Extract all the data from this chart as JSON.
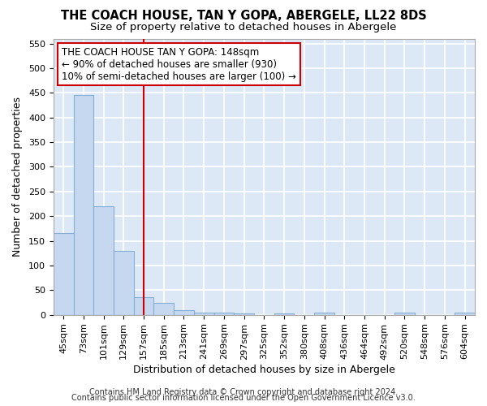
{
  "title1": "THE COACH HOUSE, TAN Y GOPA, ABERGELE, LL22 8DS",
  "title2": "Size of property relative to detached houses in Abergele",
  "xlabel": "Distribution of detached houses by size in Abergele",
  "ylabel": "Number of detached properties",
  "footer1": "Contains HM Land Registry data © Crown copyright and database right 2024.",
  "footer2": "Contains public sector information licensed under the Open Government Licence v3.0.",
  "categories": [
    "45sqm",
    "73sqm",
    "101sqm",
    "129sqm",
    "157sqm",
    "185sqm",
    "213sqm",
    "241sqm",
    "269sqm",
    "297sqm",
    "325sqm",
    "352sqm",
    "380sqm",
    "408sqm",
    "436sqm",
    "464sqm",
    "492sqm",
    "520sqm",
    "548sqm",
    "576sqm",
    "604sqm"
  ],
  "values": [
    165,
    445,
    220,
    130,
    35,
    25,
    10,
    5,
    4,
    2,
    0,
    3,
    0,
    4,
    0,
    0,
    0,
    4,
    0,
    0,
    4
  ],
  "bar_color": "#c5d8f0",
  "bar_edge_color": "#85aed4",
  "red_line_index": 4,
  "red_line_color": "#cc0000",
  "annotation_text": "THE COACH HOUSE TAN Y GOPA: 148sqm\n← 90% of detached houses are smaller (930)\n10% of semi-detached houses are larger (100) →",
  "annotation_box_color": "#ffffff",
  "annotation_border_color": "#cc0000",
  "ylim": [
    0,
    560
  ],
  "yticks": [
    0,
    50,
    100,
    150,
    200,
    250,
    300,
    350,
    400,
    450,
    500,
    550
  ],
  "background_color": "#dce8f5",
  "grid_color": "#ffffff",
  "title1_fontsize": 10.5,
  "title2_fontsize": 9.5,
  "xlabel_fontsize": 9,
  "ylabel_fontsize": 9,
  "tick_fontsize": 8,
  "annotation_fontsize": 8.5,
  "footer_fontsize": 7
}
